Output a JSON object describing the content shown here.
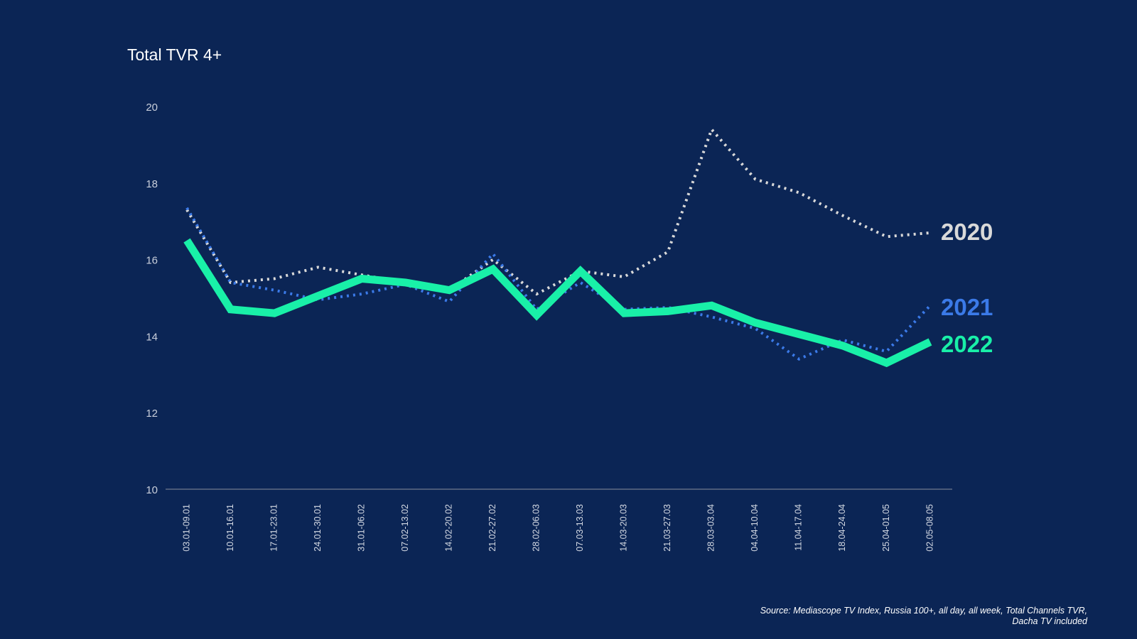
{
  "chart_data": {
    "type": "line",
    "title": "Total TVR 4+",
    "xlabel": "",
    "ylabel": "",
    "ylim": [
      10,
      20
    ],
    "yticks": [
      "10",
      "12",
      "14",
      "16",
      "18",
      "20"
    ],
    "grid": false,
    "legend": "right (end-of-line labels)",
    "categories": [
      "03.01-09.01",
      "10.01-16.01",
      "17.01-23.01",
      "24.01-30.01",
      "31.01-06.02",
      "07.02-13.02",
      "14.02-20.02",
      "21.02-27.02",
      "28.02-06.03",
      "07.03-13.03",
      "14.03-20.03",
      "21.03-27.03",
      "28.03-03.04",
      "04.04-10.04",
      "11.04-17.04",
      "18.04-24.04",
      "25.04-01.05",
      "02.05-08.05"
    ],
    "series": [
      {
        "name": "2020",
        "color": "#d9d9d9",
        "style": "dotted",
        "values": [
          17.3,
          15.4,
          15.5,
          15.8,
          15.6,
          15.4,
          15.2,
          16.0,
          15.1,
          15.7,
          15.55,
          16.2,
          19.4,
          18.1,
          17.75,
          17.15,
          16.6,
          16.7
        ]
      },
      {
        "name": "2021",
        "color": "#3b7ae8",
        "style": "dotted",
        "values": [
          17.35,
          15.4,
          15.2,
          14.95,
          15.1,
          15.35,
          14.9,
          16.15,
          14.7,
          15.4,
          14.7,
          14.75,
          14.5,
          14.2,
          13.4,
          13.9,
          13.6,
          14.8
        ]
      },
      {
        "name": "2022",
        "color": "#19f0a8",
        "style": "solid",
        "values": [
          16.5,
          14.7,
          14.6,
          15.05,
          15.5,
          15.4,
          15.2,
          15.75,
          14.55,
          15.7,
          14.6,
          14.65,
          14.8,
          14.35,
          14.05,
          13.75,
          13.3,
          13.85
        ]
      }
    ]
  },
  "footer": {
    "source_line1": "Source: Mediascope TV Index, Russia 100+, all day, all week, Total Channels TVR,",
    "source_line2": "Dacha TV included"
  }
}
